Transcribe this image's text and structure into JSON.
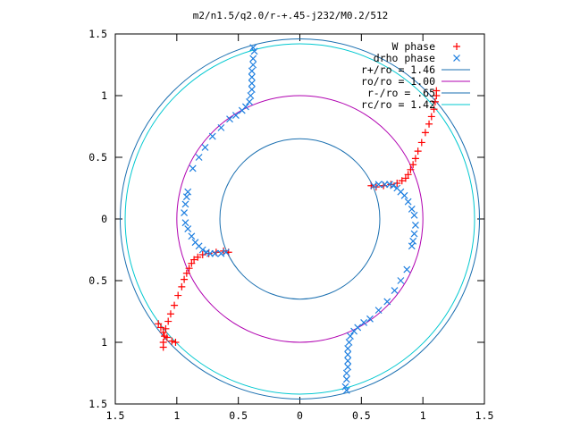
{
  "chart_data": {
    "type": "scatter",
    "title": "m2/n1.5/q2.0/r-+.45-j232/M0.2/512",
    "xlabel": "",
    "ylabel": "",
    "xlim": [
      -1.5,
      1.5
    ],
    "ylim": [
      -1.5,
      1.5
    ],
    "x_tick_labels": [
      "1.5",
      "1",
      "0.5",
      "0",
      "0.5",
      "1",
      "1.5"
    ],
    "y_tick_labels": [
      "1.5",
      "1",
      "0.5",
      "0",
      "0.5",
      "1",
      "1.5"
    ],
    "grid": false,
    "legend_position": "top-right",
    "circles": [
      {
        "name": "r+/ro = 1.46",
        "radius": 1.46,
        "color": "#1a6fb0"
      },
      {
        "name": "ro/ro = 1.00",
        "radius": 1.0,
        "color": "#b000b0"
      },
      {
        "name": "r-/ro = .65",
        "radius": 0.65,
        "color": "#1a6fb0"
      },
      {
        "name": "rc/ro = 1.42",
        "radius": 1.42,
        "color": "#00c8d0"
      }
    ],
    "series": [
      {
        "name": "W phase",
        "marker": "+",
        "color": "#ff0000",
        "points": [
          [
            0.58,
            0.27
          ],
          [
            0.62,
            0.26
          ],
          [
            0.68,
            0.27
          ],
          [
            0.74,
            0.28
          ],
          [
            0.79,
            0.29
          ],
          [
            0.83,
            0.31
          ],
          [
            0.86,
            0.33
          ],
          [
            0.88,
            0.36
          ],
          [
            0.9,
            0.4
          ],
          [
            0.92,
            0.44
          ],
          [
            0.94,
            0.49
          ],
          [
            0.96,
            0.55
          ],
          [
            0.99,
            0.62
          ],
          [
            1.02,
            0.7
          ],
          [
            1.05,
            0.77
          ],
          [
            1.07,
            0.83
          ],
          [
            1.09,
            0.89
          ],
          [
            1.1,
            0.95
          ],
          [
            1.11,
            1.0
          ],
          [
            1.11,
            1.04
          ],
          [
            -0.58,
            -0.27
          ],
          [
            -0.62,
            -0.26
          ],
          [
            -0.68,
            -0.27
          ],
          [
            -0.74,
            -0.28
          ],
          [
            -0.79,
            -0.29
          ],
          [
            -0.83,
            -0.31
          ],
          [
            -0.86,
            -0.33
          ],
          [
            -0.88,
            -0.36
          ],
          [
            -0.9,
            -0.4
          ],
          [
            -0.92,
            -0.44
          ],
          [
            -0.94,
            -0.49
          ],
          [
            -0.96,
            -0.55
          ],
          [
            -0.99,
            -0.62
          ],
          [
            -1.02,
            -0.7
          ],
          [
            -1.05,
            -0.77
          ],
          [
            -1.07,
            -0.83
          ],
          [
            -1.09,
            -0.89
          ],
          [
            -1.1,
            -0.95
          ],
          [
            -1.11,
            -1.0
          ],
          [
            -1.11,
            -1.04
          ],
          [
            -1.15,
            -0.85
          ],
          [
            -1.13,
            -0.88
          ],
          [
            -1.11,
            -0.92
          ],
          [
            -1.08,
            -0.96
          ],
          [
            -1.04,
            -0.99
          ],
          [
            -1.01,
            -1.0
          ]
        ]
      },
      {
        "name": "drho phase",
        "marker": "x",
        "color": "#1e7fe0",
        "points": [
          [
            0.6,
            0.27
          ],
          [
            0.64,
            0.28
          ],
          [
            0.69,
            0.28
          ],
          [
            0.73,
            0.28
          ],
          [
            0.76,
            0.27
          ],
          [
            0.79,
            0.25
          ],
          [
            0.82,
            0.22
          ],
          [
            0.85,
            0.19
          ],
          [
            0.88,
            0.14
          ],
          [
            0.91,
            0.08
          ],
          [
            0.93,
            0.03
          ],
          [
            0.94,
            -0.05
          ],
          [
            0.93,
            -0.12
          ],
          [
            0.92,
            -0.18
          ],
          [
            0.91,
            -0.22
          ],
          [
            0.87,
            -0.41
          ],
          [
            0.82,
            -0.5
          ],
          [
            0.77,
            -0.58
          ],
          [
            0.71,
            -0.67
          ],
          [
            0.64,
            -0.74
          ],
          [
            0.57,
            -0.81
          ],
          [
            0.52,
            -0.84
          ],
          [
            0.47,
            -0.88
          ],
          [
            0.44,
            -0.91
          ],
          [
            0.41,
            -0.95
          ],
          [
            0.4,
            -1.0
          ],
          [
            0.39,
            -1.05
          ],
          [
            0.39,
            -1.1
          ],
          [
            0.39,
            -1.15
          ],
          [
            0.39,
            -1.2
          ],
          [
            0.38,
            -1.25
          ],
          [
            0.38,
            -1.3
          ],
          [
            0.37,
            -1.36
          ],
          [
            0.38,
            -1.39
          ],
          [
            -0.6,
            -0.27
          ],
          [
            -0.64,
            -0.28
          ],
          [
            -0.69,
            -0.28
          ],
          [
            -0.73,
            -0.28
          ],
          [
            -0.76,
            -0.27
          ],
          [
            -0.79,
            -0.25
          ],
          [
            -0.82,
            -0.22
          ],
          [
            -0.85,
            -0.19
          ],
          [
            -0.88,
            -0.14
          ],
          [
            -0.91,
            -0.08
          ],
          [
            -0.93,
            -0.03
          ],
          [
            -0.94,
            0.05
          ],
          [
            -0.93,
            0.12
          ],
          [
            -0.92,
            0.18
          ],
          [
            -0.91,
            0.22
          ],
          [
            -0.87,
            0.41
          ],
          [
            -0.82,
            0.5
          ],
          [
            -0.77,
            0.58
          ],
          [
            -0.71,
            0.67
          ],
          [
            -0.64,
            0.74
          ],
          [
            -0.57,
            0.81
          ],
          [
            -0.52,
            0.84
          ],
          [
            -0.47,
            0.88
          ],
          [
            -0.44,
            0.91
          ],
          [
            -0.41,
            0.95
          ],
          [
            -0.4,
            1.0
          ],
          [
            -0.39,
            1.05
          ],
          [
            -0.39,
            1.1
          ],
          [
            -0.39,
            1.15
          ],
          [
            -0.39,
            1.2
          ],
          [
            -0.38,
            1.25
          ],
          [
            -0.38,
            1.3
          ],
          [
            -0.37,
            1.36
          ],
          [
            -0.38,
            1.39
          ]
        ]
      }
    ]
  }
}
